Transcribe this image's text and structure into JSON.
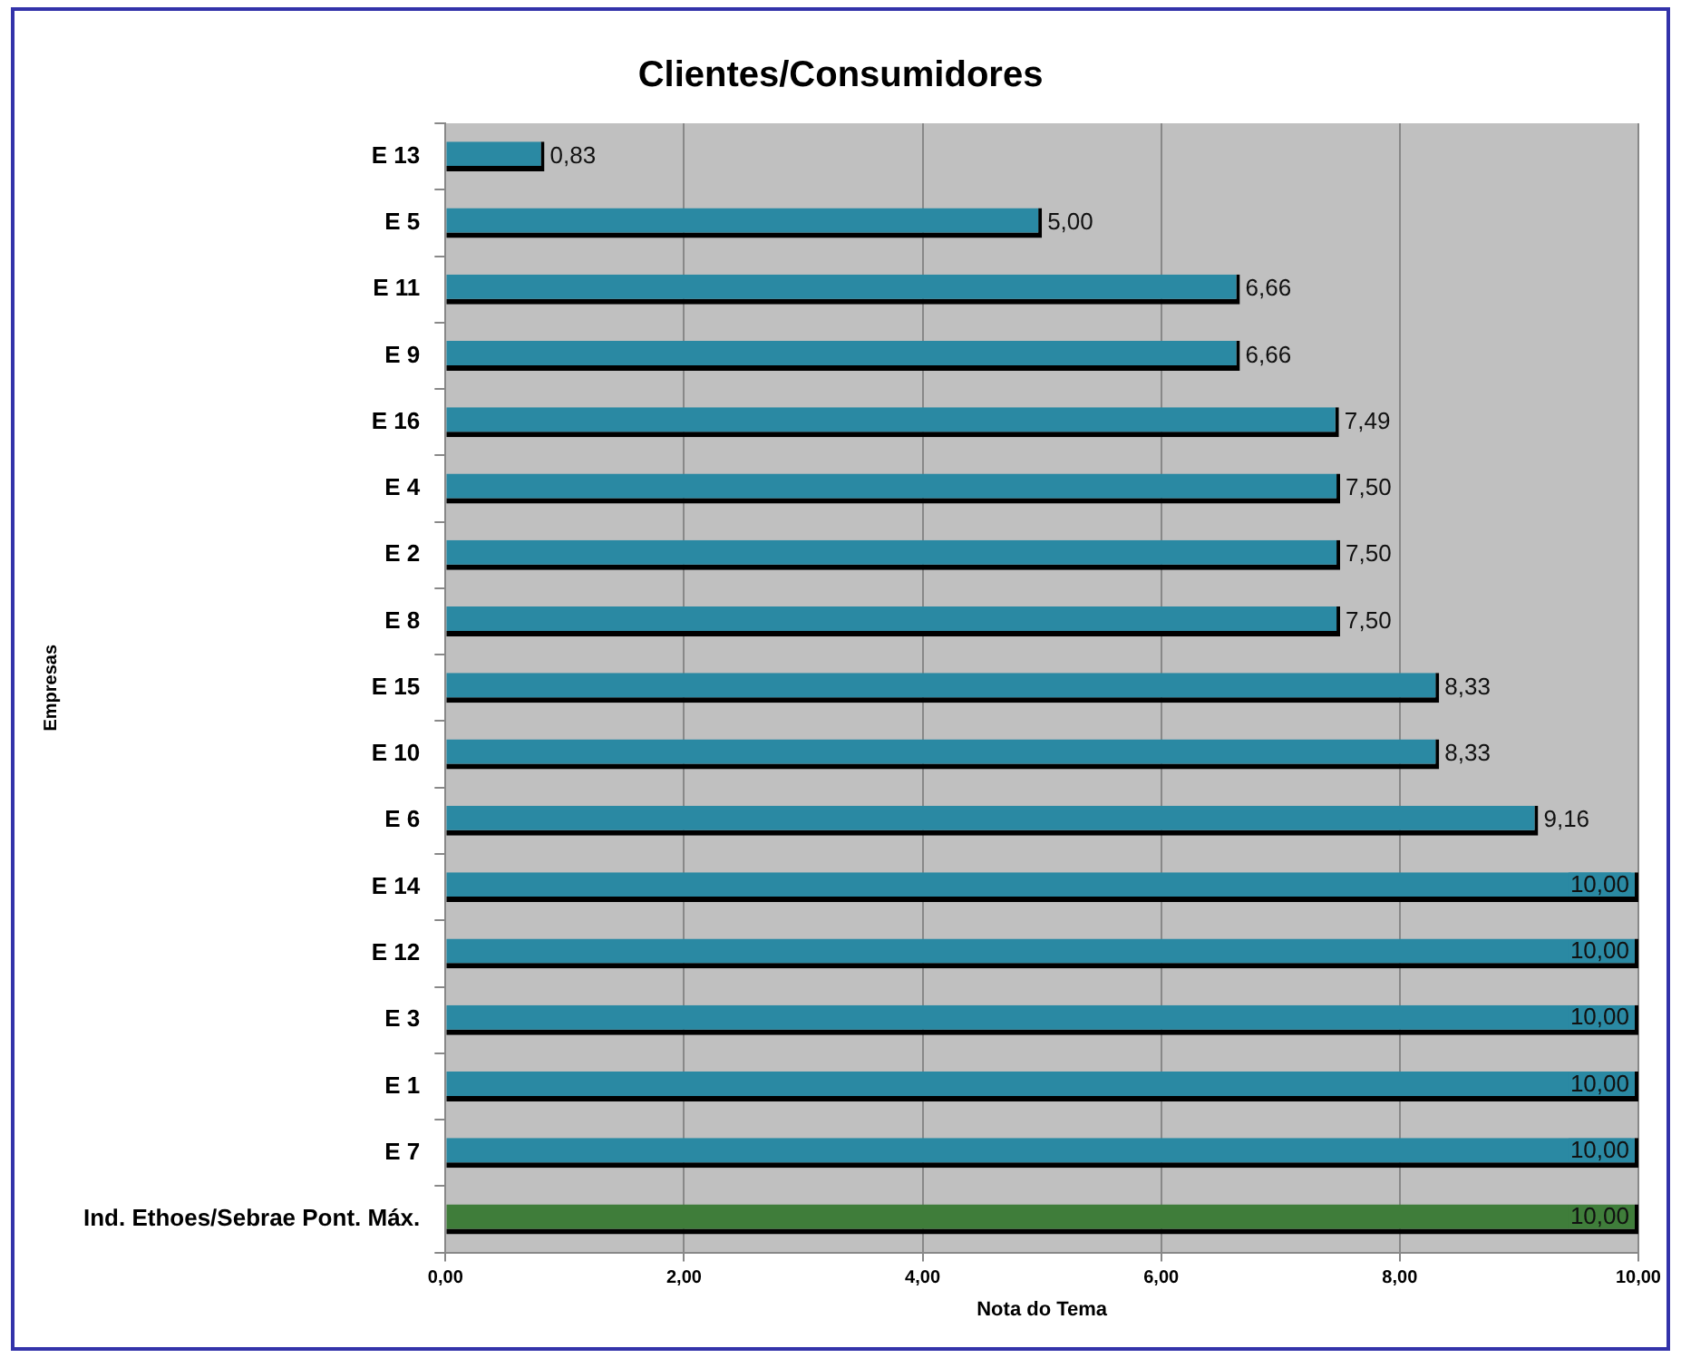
{
  "chart_data": {
    "type": "bar",
    "orientation": "horizontal",
    "title": "Clientes/Consumidores",
    "xlabel": "Nota do Tema",
    "ylabel": "Empresas",
    "categories": [
      "E 13",
      "E 5",
      "E 11",
      "E 9",
      "E 16",
      "E 4",
      "E 2",
      "E 8",
      "E 15",
      "E 10",
      "E 6",
      "E 14",
      "E 12",
      "E 3",
      "E 1",
      "E 7",
      "Ind. Ethoes/Sebrae Pont. Máx."
    ],
    "values": [
      0.83,
      5,
      6.66,
      6.66,
      7.49,
      7.5,
      7.5,
      7.5,
      8.33,
      8.33,
      9.16,
      10,
      10,
      10,
      10,
      10,
      10
    ],
    "colors": [
      "#2a89a3",
      "#2a89a3",
      "#2a89a3",
      "#2a89a3",
      "#2a89a3",
      "#2a89a3",
      "#2a89a3",
      "#2a89a3",
      "#2a89a3",
      "#2a89a3",
      "#2a89a3",
      "#2a89a3",
      "#2a89a3",
      "#2a89a3",
      "#2a89a3",
      "#2a89a3",
      "#3f7d3a"
    ],
    "value_labels": [
      "0,83",
      "5,00",
      "6,66",
      "6,66",
      "7,49",
      "7,50",
      "7,50",
      "7,50",
      "8,33",
      "8,33",
      "9,16",
      "10,00",
      "10,00",
      "10,00",
      "10,00",
      "10,00",
      "10,00"
    ],
    "xlim": [
      0,
      10
    ],
    "xticks": [
      {
        "value": 0,
        "label": "0,00"
      },
      {
        "value": 2,
        "label": "2,00"
      },
      {
        "value": 4,
        "label": "4,00"
      },
      {
        "value": 6,
        "label": "6,00"
      },
      {
        "value": 8,
        "label": "8,00"
      },
      {
        "value": 10,
        "label": "10,00"
      }
    ],
    "grid": "x",
    "legend": false
  }
}
